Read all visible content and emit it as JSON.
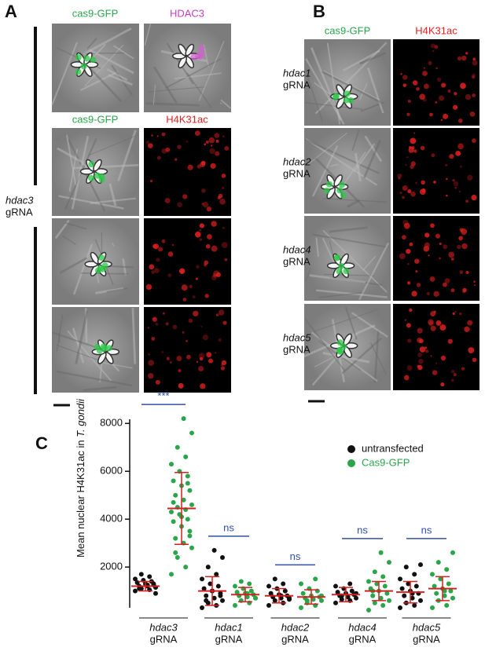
{
  "panel_a": {
    "label": "A",
    "headers": [
      [
        "cas9-GFP",
        "HDAC3"
      ],
      [
        "cas9-GFP",
        "H4K31ac"
      ]
    ],
    "row_label": [
      "hdac3",
      "gRNA"
    ]
  },
  "panel_b": {
    "label": "B",
    "headers": [
      "cas9-GFP",
      "H4K31ac"
    ],
    "rows": [
      [
        "hdac1",
        "gRNA"
      ],
      [
        "hdac2",
        "gRNA"
      ],
      [
        "hdac4",
        "gRNA"
      ],
      [
        "hdac5",
        "gRNA"
      ]
    ]
  },
  "chart_data": {
    "type": "dotplot",
    "panel_label": "C",
    "y_label": [
      "Mean nuclear H4K31ac in ",
      "T. gondii"
    ],
    "categories": [
      [
        "hdac3",
        "gRNA"
      ],
      [
        "hdac1",
        "gRNA"
      ],
      [
        "hdac2",
        "gRNA"
      ],
      [
        "hdac4",
        "gRNA"
      ],
      [
        "hdac5",
        "gRNA"
      ]
    ],
    "ylim": [
      300,
      8500
    ],
    "yticks": [
      2000,
      4000,
      6000,
      8000
    ],
    "error_color": "#d42020",
    "significance": [
      "***",
      "ns",
      "ns",
      "ns",
      "ns"
    ],
    "significance_color": "#2f4fa8",
    "series": [
      {
        "name": "untransfected",
        "color": "#111111",
        "means": [
          1200,
          1000,
          800,
          850,
          950
        ],
        "sd": [
          200,
          600,
          300,
          300,
          450
        ],
        "points": [
          [
            1000,
            1050,
            1100,
            1150,
            1200,
            1200,
            1250,
            1300,
            1350,
            1400,
            1450,
            1500,
            1600,
            1700,
            900,
            1250,
            1100,
            1300
          ],
          [
            300,
            400,
            500,
            600,
            700,
            800,
            900,
            1000,
            1100,
            1200,
            1300,
            1500,
            1700,
            2000,
            2400,
            2700,
            600,
            800,
            1000
          ],
          [
            400,
            500,
            600,
            650,
            700,
            750,
            800,
            850,
            900,
            1000,
            1100,
            1200,
            1300,
            1500,
            700,
            800
          ],
          [
            500,
            600,
            650,
            700,
            750,
            800,
            850,
            900,
            950,
            1000,
            1100,
            1200,
            1300,
            800,
            900
          ],
          [
            300,
            400,
            500,
            600,
            700,
            800,
            900,
            1000,
            1100,
            1200,
            1300,
            1500,
            1700,
            2000,
            2100,
            900
          ]
        ]
      },
      {
        "name": "Cas9-GFP",
        "color": "#2aa64a",
        "means": [
          4450,
          850,
          750,
          1000,
          1100
        ],
        "sd": [
          1500,
          300,
          300,
          400,
          500
        ],
        "points": [
          [
            1700,
            2000,
            2400,
            2800,
            3000,
            3200,
            3500,
            3700,
            3900,
            4000,
            4200,
            4300,
            4400,
            4500,
            4600,
            4800,
            5000,
            5200,
            5400,
            5600,
            5800,
            6000,
            6300,
            6600,
            7000,
            7600,
            8200,
            2600,
            3300,
            4100,
            4700,
            5500
          ],
          [
            400,
            500,
            600,
            700,
            750,
            800,
            850,
            900,
            950,
            1000,
            1100,
            1200,
            1300,
            1400,
            700,
            900
          ],
          [
            300,
            400,
            500,
            600,
            650,
            700,
            750,
            800,
            900,
            1000,
            1100,
            1300,
            1500,
            600,
            800
          ],
          [
            200,
            400,
            500,
            600,
            700,
            800,
            900,
            1000,
            1100,
            1200,
            1300,
            1400,
            1600,
            1800,
            2200,
            2600,
            1000
          ],
          [
            300,
            400,
            600,
            700,
            800,
            900,
            1000,
            1100,
            1200,
            1300,
            1500,
            1700,
            1900,
            2200,
            2600,
            1000
          ]
        ]
      }
    ]
  }
}
